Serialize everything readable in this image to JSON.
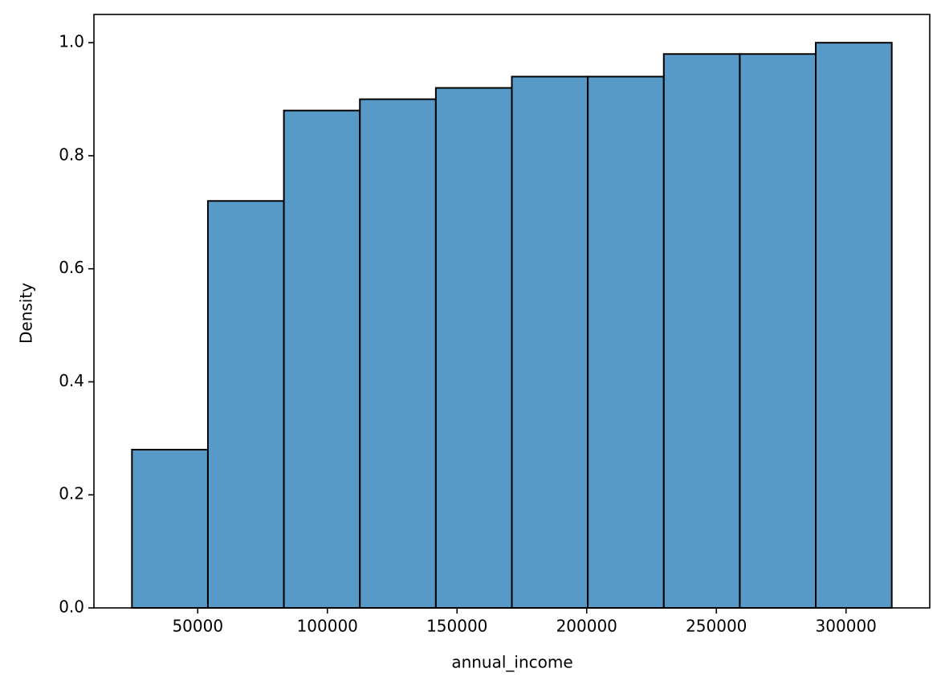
{
  "chart_data": {
    "type": "histogram",
    "xlabel": "annual_income",
    "ylabel": "Density",
    "bins": [
      24630,
      53930,
      83230,
      112530,
      141830,
      171130,
      200430,
      229730,
      259030,
      288330,
      317630
    ],
    "values": [
      0.28,
      0.72,
      0.88,
      0.9,
      0.92,
      0.94,
      0.94,
      0.98,
      0.98,
      1.0
    ],
    "color": "#5799c7",
    "edgecolor": "#000000",
    "xlim": [
      9980,
      332280
    ],
    "xticks": [
      50000,
      100000,
      150000,
      200000,
      250000,
      300000
    ],
    "ylim": [
      0,
      1.05
    ],
    "yticks": [
      {
        "value": 0,
        "label": "0.0"
      },
      0.2,
      0.4,
      0.6,
      0.8,
      {
        "value": 1,
        "label": "1.0"
      }
    ]
  }
}
